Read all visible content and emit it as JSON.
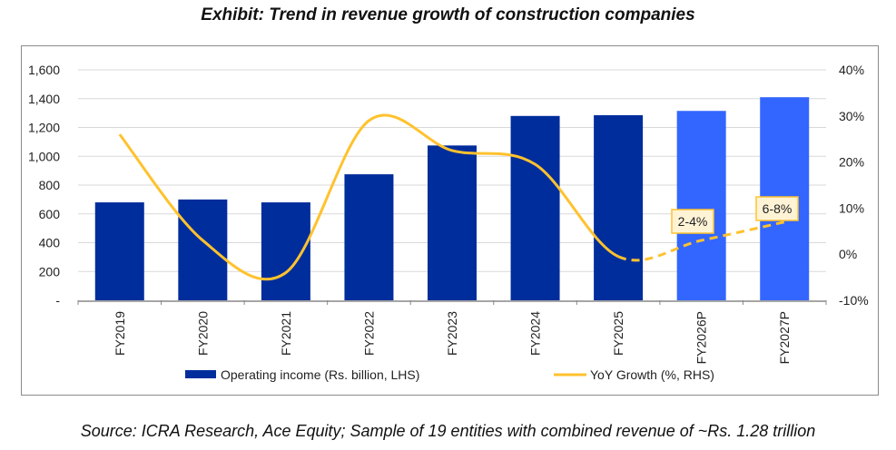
{
  "chart_data": {
    "type": "bar+line",
    "title": "Exhibit: Trend in revenue growth of construction companies",
    "categories": [
      "FY2019",
      "FY2020",
      "FY2021",
      "FY2022",
      "FY2023",
      "FY2024",
      "FY2025",
      "FY2026P",
      "FY2027P"
    ],
    "series": [
      {
        "name": "Operating income (Rs. billion, LHS)",
        "type": "bar",
        "axis": "left",
        "values": [
          680,
          700,
          680,
          875,
          1075,
          1280,
          1285,
          1315,
          1410
        ],
        "projected": [
          false,
          false,
          false,
          false,
          false,
          false,
          false,
          true,
          true
        ]
      },
      {
        "name": "YoY Growth (%, RHS)",
        "type": "line",
        "axis": "right",
        "values": [
          26,
          3,
          -4,
          29,
          22.5,
          19.5,
          -0.5,
          3,
          7
        ],
        "projected_from_index": 6
      }
    ],
    "left_axis": {
      "ylim": [
        0,
        1600
      ],
      "ticks": [
        "-",
        "200",
        "400",
        "600",
        "800",
        "1,000",
        "1,200",
        "1,400",
        "1,600"
      ]
    },
    "right_axis": {
      "ylim": [
        -10,
        40
      ],
      "ticks": [
        "-10%",
        "0%",
        "10%",
        "20%",
        "30%",
        "40%"
      ]
    },
    "annotations": [
      {
        "text": "2-4%",
        "category": "FY2026P"
      },
      {
        "text": "6-8%",
        "category": "FY2027P"
      }
    ],
    "grid": true,
    "legend": "bottom",
    "colors": {
      "bar": "#002D9C",
      "bar_projected": "#3366FF",
      "line": "#FFC22E",
      "grid": "#d9d9d9"
    }
  },
  "source": "Source: ICRA Research, Ace Equity; Sample of 19 entities with combined revenue of ~Rs. 1.28 trillion"
}
